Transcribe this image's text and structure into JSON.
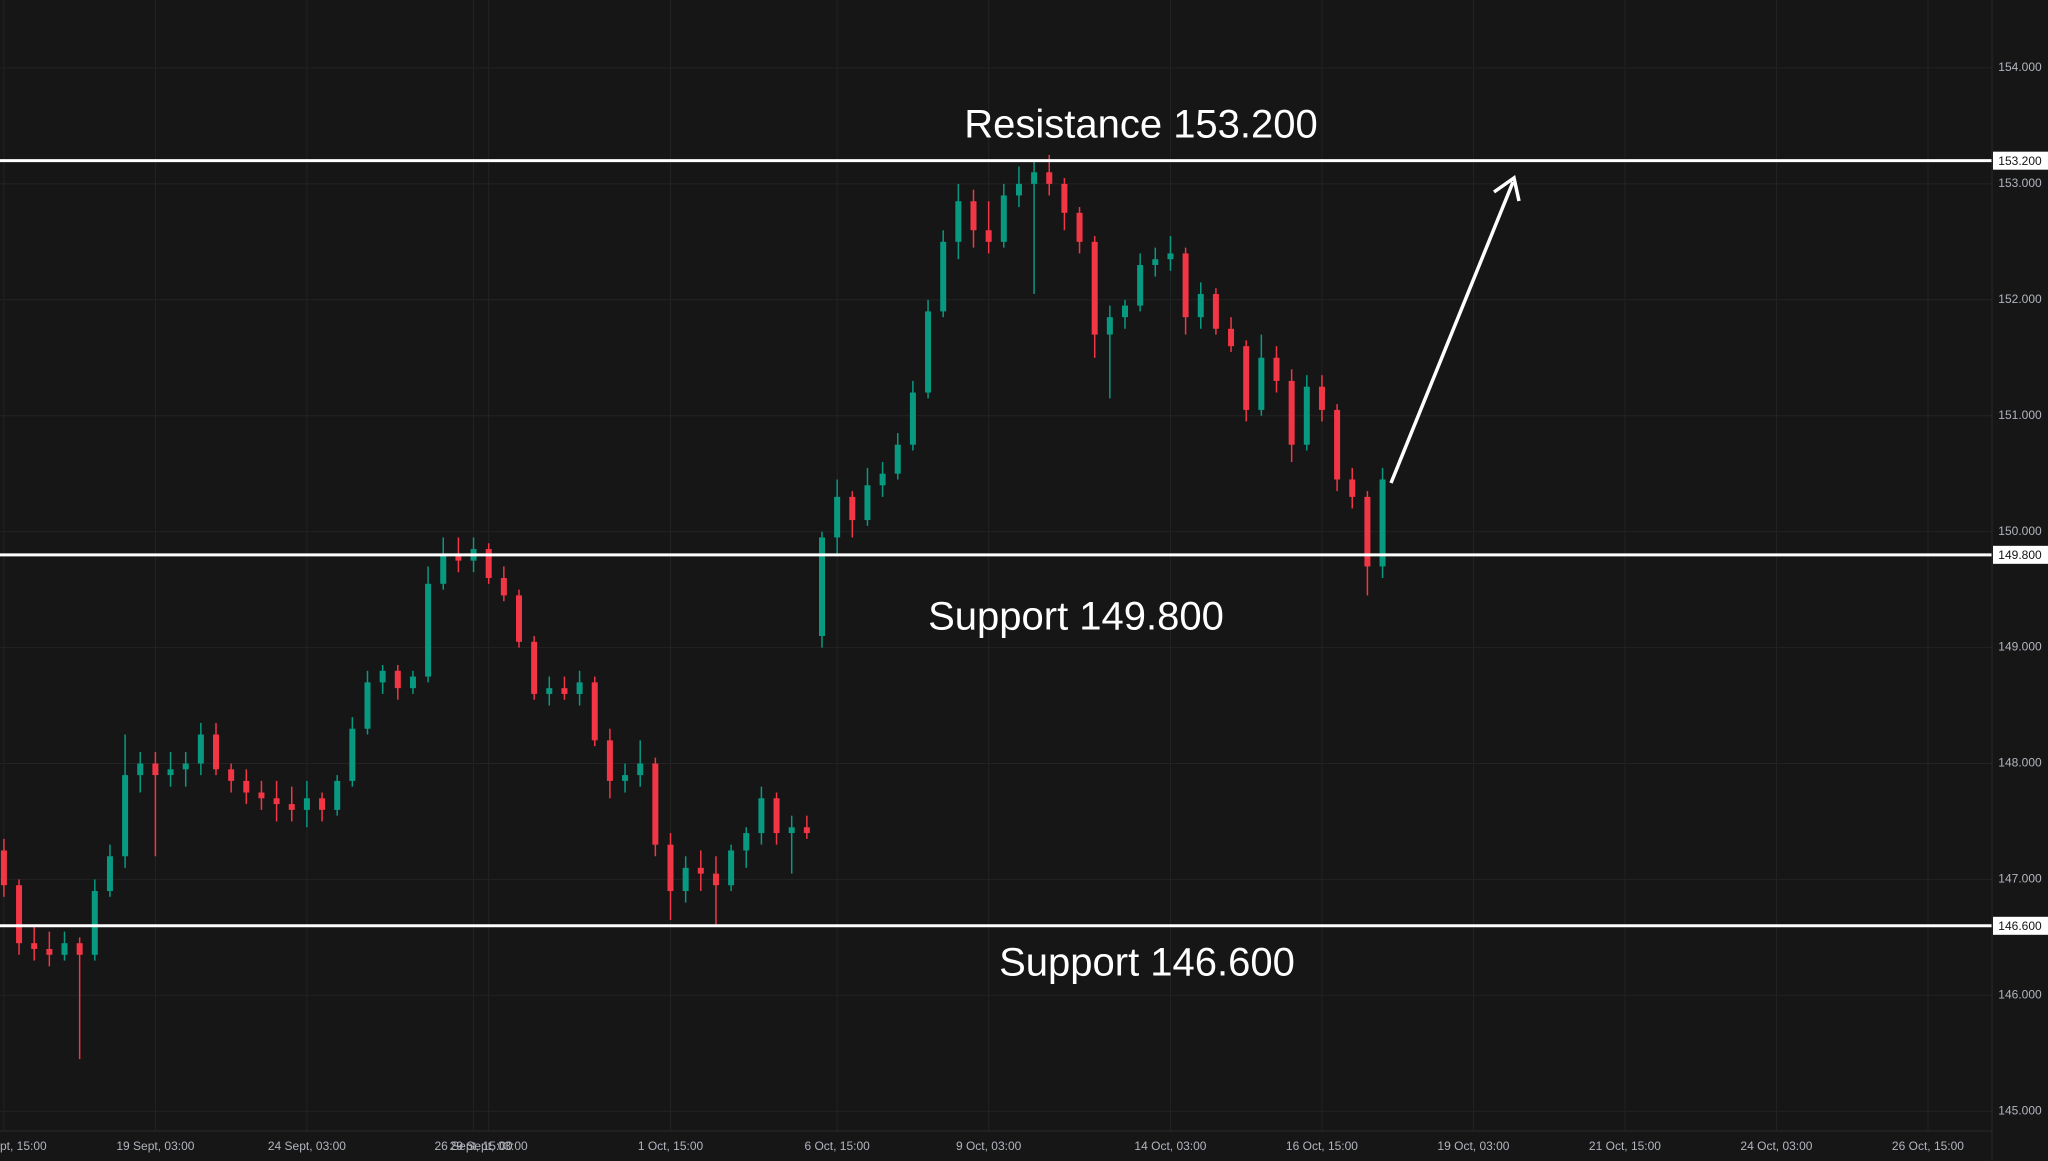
{
  "chart_data": {
    "type": "candlestick",
    "up_color": "#089981",
    "down_color": "#f23645",
    "grid": true,
    "ylim": [
      144.83,
      154.586
    ],
    "yticks": [
      {
        "value": 145,
        "label": "145.000"
      },
      {
        "value": 146,
        "label": "146.000"
      },
      {
        "value": 147,
        "label": "147.000"
      },
      {
        "value": 148,
        "label": "148.000"
      },
      {
        "value": 149,
        "label": "149.000"
      },
      {
        "value": 150,
        "label": "150.000"
      },
      {
        "value": 151,
        "label": "151.000"
      },
      {
        "value": 152,
        "label": "152.000"
      },
      {
        "value": 153,
        "label": "153.000"
      },
      {
        "value": 154,
        "label": "154.000"
      }
    ],
    "levels": [
      {
        "value": 153.2,
        "label": "153.200",
        "annotation": "Resistance 153.200"
      },
      {
        "value": 149.8,
        "label": "149.800",
        "annotation": "Support 149.800"
      },
      {
        "value": 146.6,
        "label": "146.600",
        "annotation": "Support 146.600"
      }
    ],
    "categories": [
      "pt, 15:00",
      null,
      null,
      null,
      null,
      null,
      null,
      null,
      null,
      null,
      "19 Sept, 03:00",
      null,
      null,
      null,
      null,
      null,
      null,
      null,
      null,
      null,
      "24 Sept, 03:00",
      null,
      null,
      null,
      null,
      null,
      null,
      null,
      null,
      null,
      null,
      "26 Sept, 15:00",
      "29 Sept, 03:00",
      null,
      null,
      null,
      null,
      null,
      null,
      null,
      null,
      null,
      null,
      null,
      "1 Oct, 15:00",
      null,
      null,
      null,
      null,
      null,
      null,
      null,
      null,
      null,
      null,
      "6 Oct, 15:00",
      null,
      null,
      null,
      null,
      null,
      null,
      null,
      null,
      null,
      "9 Oct, 03:00",
      null,
      null,
      null,
      null,
      null,
      null,
      null,
      null,
      null,
      null,
      null,
      "14 Oct, 03:00",
      null,
      null,
      null,
      null,
      null,
      null,
      null,
      null,
      null,
      "16 Oct, 15:00",
      null,
      null,
      null,
      null,
      null,
      null,
      null,
      null,
      null,
      "19 Oct, 03:00",
      null,
      null,
      null,
      null,
      null,
      null,
      null,
      null,
      null,
      "21 Oct, 15:00",
      null,
      null,
      null,
      null,
      null,
      null,
      null,
      null,
      null,
      "24 Oct, 03:00",
      null,
      null,
      null,
      null,
      null,
      null,
      null,
      null,
      null,
      "26 Oct, 15:00",
      null,
      null,
      null
    ],
    "open": [
      147.25,
      146.95,
      146.45,
      146.4,
      146.35,
      146.45,
      146.35,
      146.9,
      147.2,
      147.9,
      148.0,
      147.9,
      147.95,
      148.0,
      148.25,
      147.95,
      147.85,
      147.75,
      147.7,
      147.65,
      147.6,
      147.7,
      147.6,
      147.85,
      148.3,
      148.7,
      148.8,
      148.65,
      148.75,
      149.55,
      149.8,
      149.75,
      149.85,
      149.6,
      149.45,
      149.05,
      148.6,
      148.65,
      148.6,
      148.7,
      148.2,
      147.85,
      147.9,
      148.0,
      147.3,
      146.9,
      147.1,
      147.05,
      146.95,
      147.25,
      147.4,
      147.7,
      147.4,
      147.45,
      149.1,
      149.95,
      150.3,
      150.1,
      150.4,
      150.5,
      150.75,
      151.2,
      151.9,
      152.5,
      152.85,
      152.6,
      152.5,
      152.9,
      153.0,
      153.1,
      153.0,
      152.75,
      152.5,
      151.7,
      151.85,
      151.95,
      152.3,
      152.35,
      152.4,
      151.85,
      152.05,
      151.75,
      151.6,
      151.05,
      151.5,
      151.3,
      150.75,
      151.25,
      151.05,
      150.45,
      150.3,
      149.7,
      null,
      null,
      null,
      null,
      null,
      null,
      null,
      null,
      null,
      null,
      null,
      null,
      null,
      null,
      null,
      null,
      null,
      null,
      null,
      null,
      null,
      null,
      null,
      null,
      null,
      null,
      null,
      null,
      null,
      null,
      null,
      null,
      null,
      null,
      null,
      null,
      null,
      null,
      null
    ],
    "high": [
      147.35,
      147.0,
      146.6,
      146.55,
      146.55,
      146.5,
      147.0,
      147.3,
      148.25,
      148.1,
      148.1,
      148.1,
      148.1,
      148.35,
      148.35,
      148.0,
      147.95,
      147.85,
      147.85,
      147.8,
      147.85,
      147.75,
      147.9,
      148.4,
      148.8,
      148.85,
      148.85,
      148.8,
      149.7,
      149.95,
      149.95,
      149.95,
      149.9,
      149.7,
      149.5,
      149.1,
      148.75,
      148.75,
      148.8,
      148.75,
      148.3,
      148.0,
      148.2,
      148.05,
      147.4,
      147.2,
      147.25,
      147.2,
      147.3,
      147.45,
      147.8,
      147.75,
      147.55,
      147.55,
      150.0,
      150.45,
      150.35,
      150.55,
      150.6,
      150.85,
      151.3,
      152.0,
      152.6,
      153.0,
      152.95,
      152.85,
      153.0,
      153.15,
      153.2,
      153.25,
      153.05,
      152.8,
      152.55,
      151.95,
      152.0,
      152.4,
      152.45,
      152.55,
      152.45,
      152.15,
      152.1,
      151.85,
      151.65,
      151.7,
      151.6,
      151.4,
      151.35,
      151.35,
      151.1,
      150.55,
      150.35,
      150.55,
      null,
      null,
      null,
      null,
      null,
      null,
      null,
      null,
      null,
      null,
      null,
      null,
      null,
      null,
      null,
      null,
      null,
      null,
      null,
      null,
      null,
      null,
      null,
      null,
      null,
      null,
      null,
      null,
      null,
      null,
      null,
      null,
      null,
      null,
      null,
      null,
      null,
      null,
      null
    ],
    "low": [
      146.85,
      146.35,
      146.3,
      146.25,
      146.3,
      145.45,
      146.3,
      146.85,
      147.1,
      147.75,
      147.2,
      147.8,
      147.8,
      147.9,
      147.9,
      147.75,
      147.65,
      147.6,
      147.5,
      147.5,
      147.45,
      147.5,
      147.55,
      147.8,
      148.25,
      148.6,
      148.55,
      148.6,
      148.7,
      149.5,
      149.65,
      149.65,
      149.55,
      149.4,
      149.0,
      148.55,
      148.5,
      148.55,
      148.5,
      148.15,
      147.7,
      147.75,
      147.8,
      147.2,
      146.65,
      146.8,
      146.9,
      146.6,
      146.9,
      147.1,
      147.3,
      147.3,
      147.05,
      147.35,
      149.0,
      149.8,
      149.95,
      150.05,
      150.3,
      150.45,
      150.7,
      151.15,
      151.85,
      152.35,
      152.45,
      152.4,
      152.45,
      152.8,
      152.05,
      152.9,
      152.6,
      152.4,
      151.5,
      151.15,
      151.75,
      151.9,
      152.2,
      152.25,
      151.7,
      151.75,
      151.7,
      151.55,
      150.95,
      151.0,
      151.2,
      150.6,
      150.7,
      150.95,
      150.35,
      150.2,
      149.45,
      149.6,
      null,
      null,
      null,
      null,
      null,
      null,
      null,
      null,
      null,
      null,
      null,
      null,
      null,
      null,
      null,
      null,
      null,
      null,
      null,
      null,
      null,
      null,
      null,
      null,
      null,
      null,
      null,
      null,
      null,
      null,
      null,
      null,
      null,
      null,
      null,
      null,
      null,
      null,
      null
    ],
    "close": [
      146.95,
      146.45,
      146.4,
      146.35,
      146.45,
      146.35,
      146.9,
      147.2,
      147.9,
      148.0,
      147.9,
      147.95,
      148.0,
      148.25,
      147.95,
      147.85,
      147.75,
      147.7,
      147.65,
      147.6,
      147.7,
      147.6,
      147.85,
      148.3,
      148.7,
      148.8,
      148.65,
      148.75,
      149.55,
      149.8,
      149.75,
      149.85,
      149.6,
      149.45,
      149.05,
      148.6,
      148.65,
      148.6,
      148.7,
      148.2,
      147.85,
      147.9,
      148.0,
      147.3,
      146.9,
      147.1,
      147.05,
      146.95,
      147.25,
      147.4,
      147.7,
      147.4,
      147.45,
      147.4,
      149.95,
      150.3,
      150.1,
      150.4,
      150.5,
      150.75,
      151.2,
      151.9,
      152.5,
      152.85,
      152.6,
      152.5,
      152.9,
      153.0,
      153.1,
      153.0,
      152.75,
      152.5,
      151.7,
      151.85,
      151.95,
      152.3,
      152.35,
      152.4,
      151.85,
      152.05,
      151.75,
      151.6,
      151.05,
      151.5,
      151.3,
      150.75,
      151.25,
      151.05,
      150.45,
      150.3,
      149.7,
      150.45,
      null,
      null,
      null,
      null,
      null,
      null,
      null,
      null,
      null,
      null,
      null,
      null,
      null,
      null,
      null,
      null,
      null,
      null,
      null,
      null,
      null,
      null,
      null,
      null,
      null,
      null,
      null,
      null,
      null,
      null,
      null,
      null,
      null,
      null,
      null,
      null,
      null,
      null,
      null
    ]
  }
}
